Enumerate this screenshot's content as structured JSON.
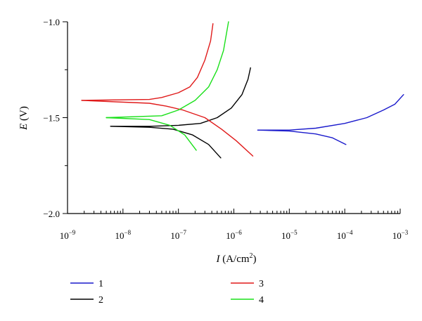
{
  "chart_data": {
    "type": "line",
    "xscale": "log",
    "xlim": [
      1e-09,
      0.001
    ],
    "ylim": [
      -2.0,
      -1.0
    ],
    "xlabel": {
      "italic": "I",
      "rest": " (A/cm",
      "sup": "2",
      "close": ")"
    },
    "ylabel": {
      "italic": "E",
      "rest": " (V)"
    },
    "ytick_labels": [
      {
        "value": -1.0,
        "label": "−1.0"
      },
      {
        "value": -1.5,
        "label": "−1.5"
      },
      {
        "value": -2.0,
        "label": "−2.0"
      }
    ],
    "xtick_labels": [
      {
        "value": 1e-09,
        "base": "10",
        "exp": "−9"
      },
      {
        "value": 1e-08,
        "base": "10",
        "exp": "−8"
      },
      {
        "value": 1e-07,
        "base": "10",
        "exp": "−7"
      },
      {
        "value": 1e-06,
        "base": "10",
        "exp": "−6"
      },
      {
        "value": 1e-05,
        "base": "10",
        "exp": "−5"
      },
      {
        "value": 0.0001,
        "base": "10",
        "exp": "−4"
      },
      {
        "value": 0.001,
        "base": "10",
        "exp": "−3"
      }
    ],
    "legend_placement": "below",
    "series": [
      {
        "name": "1",
        "color": "#1a1acc",
        "anodic": [
          [
            2.7e-06,
            -1.565
          ],
          [
            1e-05,
            -1.565
          ],
          [
            3e-05,
            -1.555
          ],
          [
            0.0001,
            -1.53
          ],
          [
            0.00025,
            -1.5
          ],
          [
            0.0005,
            -1.46
          ],
          [
            0.0008,
            -1.43
          ],
          [
            0.00115,
            -1.38
          ]
        ],
        "cathodic": [
          [
            2.7e-06,
            -1.565
          ],
          [
            1e-05,
            -1.57
          ],
          [
            3e-05,
            -1.585
          ],
          [
            6e-05,
            -1.605
          ],
          [
            0.000105,
            -1.64
          ]
        ]
      },
      {
        "name": "2",
        "color": "#000000",
        "anodic": [
          [
            6e-09,
            -1.545
          ],
          [
            3e-08,
            -1.545
          ],
          [
            1e-07,
            -1.54
          ],
          [
            2.5e-07,
            -1.53
          ],
          [
            5e-07,
            -1.5
          ],
          [
            9e-07,
            -1.45
          ],
          [
            1.4e-06,
            -1.38
          ],
          [
            1.8e-06,
            -1.3
          ],
          [
            2e-06,
            -1.24
          ]
        ],
        "cathodic": [
          [
            6e-09,
            -1.545
          ],
          [
            3e-08,
            -1.55
          ],
          [
            8e-08,
            -1.56
          ],
          [
            1.8e-07,
            -1.59
          ],
          [
            3.5e-07,
            -1.64
          ],
          [
            5.8e-07,
            -1.71
          ]
        ]
      },
      {
        "name": "3",
        "color": "#e01a1a",
        "anodic": [
          [
            1.8e-09,
            -1.41
          ],
          [
            3e-08,
            -1.405
          ],
          [
            5e-08,
            -1.395
          ],
          [
            1e-07,
            -1.37
          ],
          [
            1.6e-07,
            -1.34
          ],
          [
            2.2e-07,
            -1.29
          ],
          [
            3e-07,
            -1.2
          ],
          [
            3.8e-07,
            -1.1
          ],
          [
            4.2e-07,
            -1.01
          ]
        ],
        "cathodic": [
          [
            1.8e-09,
            -1.41
          ],
          [
            3e-08,
            -1.425
          ],
          [
            6e-08,
            -1.44
          ],
          [
            1.2e-07,
            -1.46
          ],
          [
            3e-07,
            -1.5
          ],
          [
            6e-07,
            -1.56
          ],
          [
            1.1e-06,
            -1.62
          ],
          [
            2.2e-06,
            -1.7
          ]
        ]
      },
      {
        "name": "4",
        "color": "#1ae01a",
        "anodic": [
          [
            5e-09,
            -1.5
          ],
          [
            5e-08,
            -1.49
          ],
          [
            1e-07,
            -1.46
          ],
          [
            2e-07,
            -1.41
          ],
          [
            3.5e-07,
            -1.34
          ],
          [
            5e-07,
            -1.25
          ],
          [
            6.5e-07,
            -1.15
          ],
          [
            8e-07,
            -1.0
          ]
        ],
        "cathodic": [
          [
            5e-09,
            -1.5
          ],
          [
            3e-08,
            -1.51
          ],
          [
            7e-08,
            -1.54
          ],
          [
            1.3e-07,
            -1.59
          ],
          [
            2.1e-07,
            -1.67
          ]
        ]
      }
    ]
  }
}
